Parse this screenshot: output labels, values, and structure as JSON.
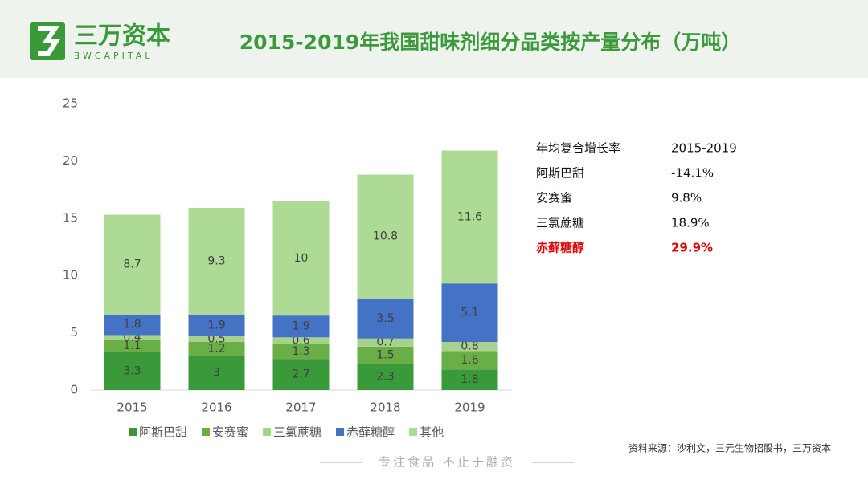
{
  "header": {
    "brand": "三万资本",
    "brand_en": "ƎWCAPITAL",
    "title": "2015-2019年我国甜味剂细分品类按产量分布（万吨）"
  },
  "chart_data": {
    "type": "bar",
    "stacked": true,
    "categories": [
      "2015",
      "2016",
      "2017",
      "2018",
      "2019"
    ],
    "series": [
      {
        "name": "阿斯巴甜",
        "color": "#3a9a3a",
        "values": [
          3.3,
          3,
          2.7,
          2.3,
          1.8
        ]
      },
      {
        "name": "安赛蜜",
        "color": "#6aaf45",
        "values": [
          1.1,
          1.2,
          1.3,
          1.5,
          1.6
        ]
      },
      {
        "name": "三氯蔗糖",
        "color": "#a9d18e",
        "values": [
          0.4,
          0.5,
          0.6,
          0.7,
          0.8
        ]
      },
      {
        "name": "赤藓糖醇",
        "color": "#4472c4",
        "values": [
          1.8,
          1.9,
          1.9,
          3.5,
          5.1
        ]
      },
      {
        "name": "其他",
        "color": "#addb95",
        "values": [
          8.7,
          9.3,
          10,
          10.8,
          11.6
        ]
      }
    ],
    "ylim": [
      0,
      25
    ],
    "yticks": [
      0,
      5,
      10,
      15,
      20,
      25
    ],
    "grid": false,
    "legend": "bottom"
  },
  "cagr_table": {
    "rows": [
      [
        "年均复合增长率",
        "2015-2019"
      ],
      [
        "阿斯巴甜",
        "-14.1%"
      ],
      [
        "安赛蜜",
        "9.8%"
      ],
      [
        "三氯蔗糖",
        "18.9%"
      ],
      [
        "赤藓糖醇",
        "29.9%"
      ]
    ]
  },
  "source": "资料来源：沙利文，三元生物招股书，三万资本",
  "slogan": "专注食品  不止于融资"
}
